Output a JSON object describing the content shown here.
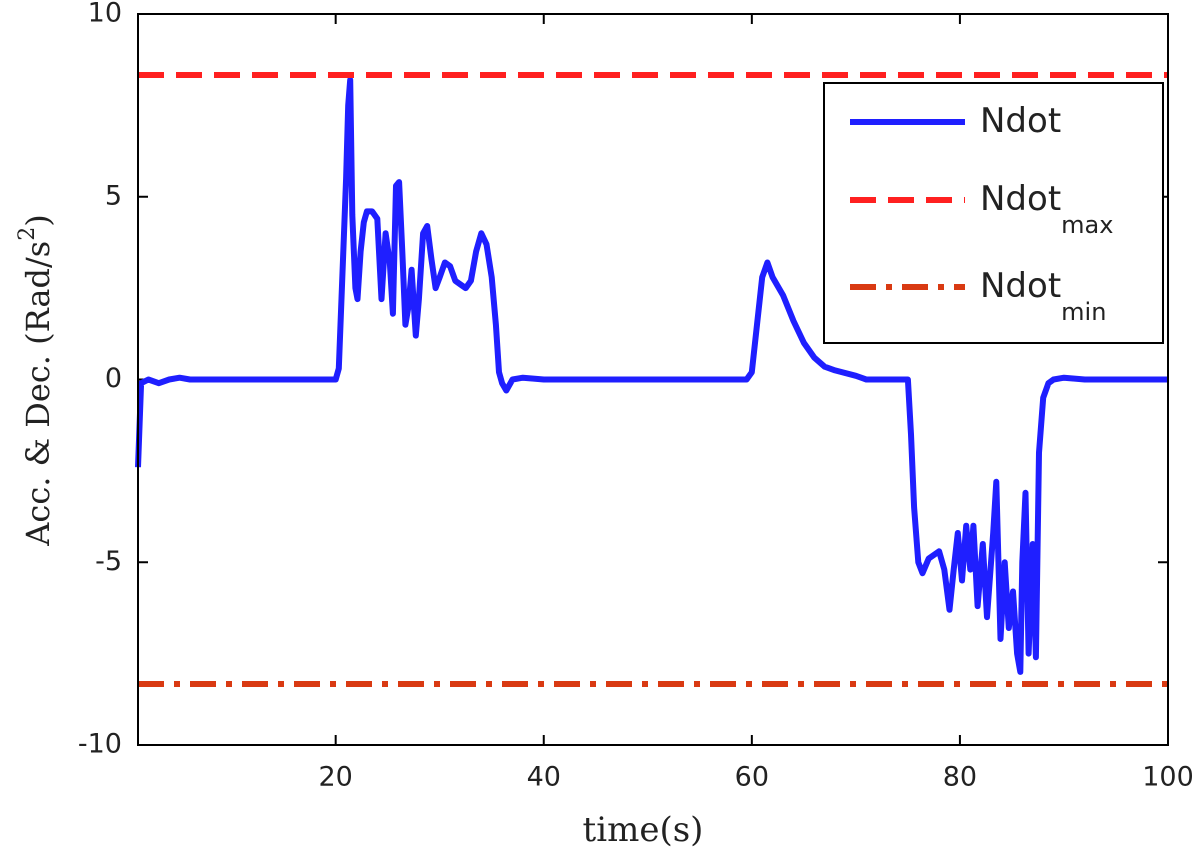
{
  "chart_data": {
    "type": "line",
    "xlabel": "time(s)",
    "ylabel": "Acc. & Dec. (Rad/s",
    "ylabel_sup": "2",
    "ylabel_end": ")",
    "xlim": [
      1,
      100
    ],
    "xticks": [
      20,
      40,
      60,
      80,
      100
    ],
    "ylim": [
      -10,
      10
    ],
    "yticks": [
      -10,
      -5,
      0,
      5,
      10
    ],
    "legend": "upper right",
    "series": [
      {
        "name": "Ndot",
        "color": "#1f1fff",
        "style": "solid",
        "x": [
          1,
          1.3,
          2,
          3,
          4,
          5,
          6,
          10,
          20,
          20.3,
          20.6,
          21,
          21.2,
          21.4,
          21.6,
          21.9,
          22.1,
          22.4,
          22.7,
          23,
          23.5,
          24,
          24.4,
          24.8,
          25.2,
          25.5,
          25.8,
          26.1,
          26.4,
          26.7,
          27,
          27.3,
          27.7,
          28,
          28.4,
          28.8,
          29.2,
          29.6,
          30,
          30.5,
          31,
          31.5,
          32,
          32.5,
          33,
          33.5,
          34,
          34.5,
          35,
          35.4,
          35.7,
          36,
          36.4,
          37,
          38,
          40,
          42,
          50,
          58,
          59.5,
          60,
          60.5,
          61,
          61.5,
          62,
          63,
          64,
          65,
          66,
          67,
          68,
          70,
          71,
          75,
          75.3,
          75.6,
          76,
          76.4,
          77,
          78,
          78.5,
          79,
          79.4,
          79.8,
          80.2,
          80.6,
          81,
          81.3,
          81.7,
          82.2,
          82.6,
          83.2,
          83.5,
          83.9,
          84.3,
          84.7,
          85.1,
          85.5,
          85.8,
          86,
          86.3,
          86.6,
          87,
          87.3,
          87.6,
          88,
          88.5,
          89,
          90,
          92,
          95,
          100
        ],
        "values": [
          -2.4,
          -0.1,
          0,
          -0.1,
          0,
          0.05,
          0,
          0,
          0,
          0.3,
          2.5,
          5.5,
          7.5,
          8.2,
          4.5,
          2.5,
          2.2,
          3.5,
          4.3,
          4.6,
          4.6,
          4.4,
          2.2,
          4.0,
          3.2,
          1.8,
          5.3,
          5.4,
          3.5,
          1.5,
          2.0,
          3.0,
          1.2,
          2.2,
          4.0,
          4.2,
          3.3,
          2.5,
          2.8,
          3.2,
          3.1,
          2.7,
          2.6,
          2.5,
          2.7,
          3.5,
          4.0,
          3.7,
          2.8,
          1.5,
          0.2,
          -0.1,
          -0.3,
          0,
          0.05,
          0,
          0,
          0,
          0,
          0,
          0.2,
          1.5,
          2.8,
          3.2,
          2.8,
          2.3,
          1.6,
          1.0,
          0.6,
          0.35,
          0.25,
          0.1,
          0,
          0,
          -1.5,
          -3.5,
          -5.0,
          -5.3,
          -4.9,
          -4.7,
          -5.2,
          -6.3,
          -5.2,
          -4.2,
          -5.5,
          -4.0,
          -5.2,
          -4.0,
          -6.2,
          -4.5,
          -6.5,
          -4.2,
          -2.8,
          -7.1,
          -5.0,
          -6.8,
          -5.8,
          -7.5,
          -8.0,
          -5,
          -3.1,
          -7.5,
          -4.5,
          -7.6,
          -2,
          -0.5,
          -0.1,
          0,
          0.05,
          0,
          0,
          0
        ]
      },
      {
        "name": "Ndot",
        "name_sub": "max",
        "color": "#ff2020",
        "style": "dashed",
        "x": [
          1,
          100
        ],
        "values": [
          8.33,
          8.33
        ]
      },
      {
        "name": "Ndot",
        "name_sub": "min",
        "color": "#d93a12",
        "style": "dashdot",
        "x": [
          1,
          100
        ],
        "values": [
          -8.33,
          -8.33
        ]
      }
    ]
  }
}
